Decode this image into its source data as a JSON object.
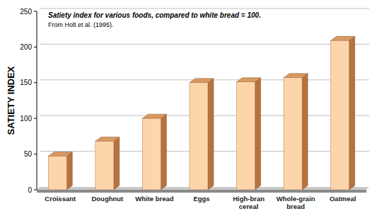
{
  "chart_data": {
    "type": "bar",
    "title": "Satiety index for various foods, compared to white bread = 100.",
    "subtitle": "From Holt et al. (1995).",
    "y_label": "SATIETY INDEX",
    "categories": [
      "Croissant",
      "Doughnut",
      "White bread",
      "Eggs",
      "High-bran cereal",
      "Whole-grain bread",
      "Oatmeal"
    ],
    "values": [
      47,
      68,
      100,
      150,
      151,
      157,
      209
    ],
    "color": "#fdd5ab",
    "ylim": [
      0,
      250
    ],
    "yticks": [
      0,
      50,
      100,
      150,
      200,
      250
    ],
    "grid": true
  }
}
